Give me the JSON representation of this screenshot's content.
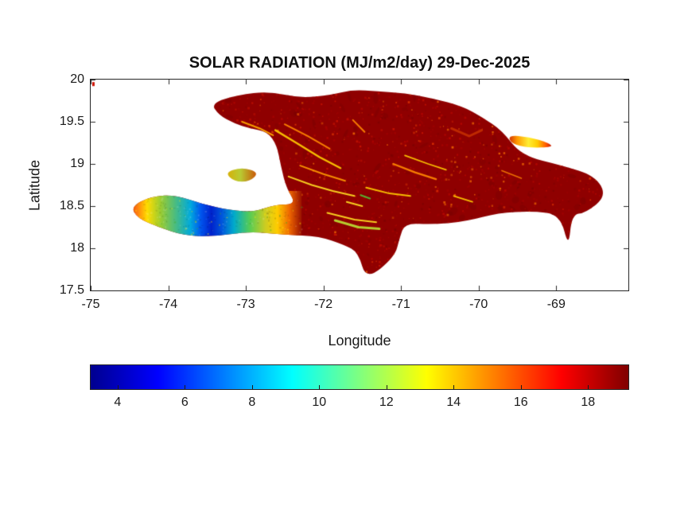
{
  "chart_data": {
    "type": "heatmap",
    "title": "SOLAR RADIATION (MJ/m2/day) 29-Dec-2025",
    "xlabel": "Longitude",
    "ylabel": "Latitude",
    "xlim": [
      -75,
      -68.07
    ],
    "ylim": [
      17.5,
      20
    ],
    "x_ticks": [
      -75,
      -74,
      -73,
      -72,
      -71,
      -70,
      -69
    ],
    "y_ticks": [
      17.5,
      18,
      18.5,
      19,
      19.5,
      20
    ],
    "value_units": "MJ/m2/day",
    "value_summary": [
      {
        "region": "most of island (Hispaniola)",
        "approx_value": "18-19"
      },
      {
        "region": "southwest Tiburon peninsula core",
        "approx_value": "4-8"
      },
      {
        "region": "southwest peninsula fringes",
        "approx_value": "9-13"
      },
      {
        "region": "interior mountain ridges",
        "approx_value": "12-15"
      },
      {
        "region": "Samana peninsula (northeast strip)",
        "approx_value": "12-16"
      },
      {
        "region": "Gonave island",
        "approx_value": "11-14"
      }
    ],
    "colorbar": {
      "orientation": "horizontal",
      "colormap": "jet",
      "range": [
        3.2,
        19.2
      ],
      "ticks": [
        4,
        6,
        8,
        10,
        12,
        14,
        16,
        18
      ],
      "stops": [
        [
          0,
          "#00008f"
        ],
        [
          0.125,
          "#0000ff"
        ],
        [
          0.375,
          "#00ffff"
        ],
        [
          0.625,
          "#ffff00"
        ],
        [
          0.875,
          "#ff0000"
        ],
        [
          1,
          "#800000"
        ]
      ]
    },
    "map": {
      "base_color": "#8f0000",
      "speckle_colors": [
        "#a00000",
        "#b40600",
        "#7d0000",
        "#c51200",
        "#d93000",
        "#e85e00"
      ],
      "outline": [
        [
          -73.45,
          19.72
        ],
        [
          -73.1,
          19.82
        ],
        [
          -72.7,
          19.86
        ],
        [
          -72.3,
          19.78
        ],
        [
          -71.9,
          19.82
        ],
        [
          -71.62,
          19.88
        ],
        [
          -71.3,
          19.86
        ],
        [
          -70.95,
          19.84
        ],
        [
          -70.6,
          19.78
        ],
        [
          -70.2,
          19.68
        ],
        [
          -69.95,
          19.55
        ],
        [
          -69.7,
          19.4
        ],
        [
          -69.45,
          19.1
        ],
        [
          -68.92,
          18.98
        ],
        [
          -68.5,
          18.86
        ],
        [
          -68.35,
          18.62
        ],
        [
          -68.62,
          18.42
        ],
        [
          -68.8,
          18.4
        ],
        [
          -68.84,
          18.0
        ],
        [
          -68.95,
          18.4
        ],
        [
          -69.3,
          18.44
        ],
        [
          -69.75,
          18.42
        ],
        [
          -70.15,
          18.32
        ],
        [
          -70.6,
          18.28
        ],
        [
          -70.95,
          18.3
        ],
        [
          -71.02,
          18.12
        ],
        [
          -71.08,
          17.9
        ],
        [
          -71.45,
          17.62
        ],
        [
          -71.55,
          17.95
        ],
        [
          -71.73,
          18.04
        ],
        [
          -72.05,
          18.14
        ],
        [
          -72.5,
          18.16
        ],
        [
          -72.95,
          18.2
        ],
        [
          -73.4,
          18.14
        ],
        [
          -73.8,
          18.15
        ],
        [
          -74.12,
          18.25
        ],
        [
          -74.4,
          18.36
        ],
        [
          -74.48,
          18.5
        ],
        [
          -74.2,
          18.62
        ],
        [
          -73.9,
          18.63
        ],
        [
          -73.55,
          18.52
        ],
        [
          -73.2,
          18.45
        ],
        [
          -72.9,
          18.43
        ],
        [
          -72.62,
          18.52
        ],
        [
          -72.35,
          18.52
        ],
        [
          -72.48,
          18.72
        ],
        [
          -72.55,
          18.98
        ],
        [
          -72.6,
          19.22
        ],
        [
          -72.72,
          19.38
        ],
        [
          -72.95,
          19.42
        ],
        [
          -73.15,
          19.48
        ],
        [
          -73.35,
          19.58
        ]
      ],
      "gonave": {
        "points": [
          [
            -73.27,
            18.9
          ],
          [
            -73.05,
            18.96
          ],
          [
            -72.83,
            18.9
          ],
          [
            -72.95,
            18.79
          ],
          [
            -73.15,
            18.79
          ]
        ],
        "stops": [
          [
            0,
            "#ddaa00"
          ],
          [
            0.45,
            "#b9cc33"
          ],
          [
            1,
            "#cc4400"
          ]
        ]
      },
      "samana": {
        "points": [
          [
            -69.62,
            19.34
          ],
          [
            -69.35,
            19.32
          ],
          [
            -69.1,
            19.25
          ],
          [
            -69.04,
            19.2
          ],
          [
            -69.35,
            19.19
          ],
          [
            -69.58,
            19.24
          ]
        ],
        "stops": [
          [
            0,
            "#cc2200"
          ],
          [
            0.2,
            "#ff9900"
          ],
          [
            0.45,
            "#ffee33"
          ],
          [
            0.65,
            "#ffcc00"
          ],
          [
            0.85,
            "#ff5500"
          ],
          [
            1,
            "#aa0000"
          ]
        ]
      },
      "low_region": {
        "lon0": -74.52,
        "lat0": 18.08,
        "lon1": -72.28,
        "lat1": 18.68,
        "stops": [
          [
            0,
            "#cc3300"
          ],
          [
            0.05,
            "#ff7711"
          ],
          [
            0.11,
            "#ffdd00"
          ],
          [
            0.19,
            "#99cc33"
          ],
          [
            0.28,
            "#44bb88"
          ],
          [
            0.36,
            "#00aadd"
          ],
          [
            0.42,
            "#0055ee"
          ],
          [
            0.48,
            "#0022cc"
          ],
          [
            0.54,
            "#0055dd"
          ],
          [
            0.61,
            "#00aacc"
          ],
          [
            0.7,
            "#55cc55"
          ],
          [
            0.79,
            "#cccc22"
          ],
          [
            0.86,
            "#ffcc00"
          ],
          [
            0.93,
            "#ee6600"
          ],
          [
            1,
            "#991100"
          ]
        ]
      },
      "ridges": [
        {
          "color": "#ffcc00",
          "width": 2.4,
          "points": [
            [
              -72.62,
              19.4
            ],
            [
              -72.35,
              19.25
            ],
            [
              -72.05,
              19.08
            ],
            [
              -71.78,
              18.95
            ]
          ]
        },
        {
          "color": "#ff8800",
          "width": 2,
          "points": [
            [
              -72.5,
              19.47
            ],
            [
              -72.2,
              19.33
            ],
            [
              -71.92,
              19.18
            ]
          ]
        },
        {
          "color": "#ffaa00",
          "width": 2,
          "points": [
            [
              -73.05,
              19.5
            ],
            [
              -72.82,
              19.42
            ],
            [
              -72.65,
              19.34
            ]
          ]
        },
        {
          "color": "#ffdd22",
          "width": 2,
          "points": [
            [
              -72.45,
              18.85
            ],
            [
              -72.15,
              18.75
            ],
            [
              -71.88,
              18.68
            ],
            [
              -71.6,
              18.62
            ]
          ]
        },
        {
          "color": "#ff9900",
          "width": 2,
          "points": [
            [
              -72.3,
              18.98
            ],
            [
              -72.0,
              18.88
            ],
            [
              -71.72,
              18.8
            ]
          ]
        },
        {
          "color": "#bbdd33",
          "width": 3,
          "points": [
            [
              -71.85,
              18.33
            ],
            [
              -71.55,
              18.25
            ],
            [
              -71.28,
              18.23
            ]
          ]
        },
        {
          "color": "#ffdd22",
          "width": 2,
          "points": [
            [
              -71.95,
              18.42
            ],
            [
              -71.6,
              18.34
            ],
            [
              -71.32,
              18.31
            ]
          ]
        },
        {
          "color": "#ffcc00",
          "width": 2,
          "points": [
            [
              -71.45,
              18.72
            ],
            [
              -71.15,
              18.65
            ],
            [
              -70.88,
              18.62
            ]
          ]
        },
        {
          "color": "#ff8800",
          "width": 2.4,
          "points": [
            [
              -71.1,
              19.0
            ],
            [
              -70.82,
              18.9
            ],
            [
              -70.55,
              18.82
            ]
          ]
        },
        {
          "color": "#ffcc00",
          "width": 1.8,
          "points": [
            [
              -70.95,
              19.1
            ],
            [
              -70.65,
              19.0
            ],
            [
              -70.42,
              18.93
            ]
          ]
        },
        {
          "color": "#ff8800",
          "width": 2,
          "points": [
            [
              -71.62,
              19.52
            ],
            [
              -71.47,
              19.38
            ]
          ]
        },
        {
          "color": "#dd4400",
          "width": 3,
          "alpha": 0.6,
          "points": [
            [
              -70.35,
              19.42
            ],
            [
              -70.12,
              19.33
            ],
            [
              -69.96,
              19.4
            ]
          ]
        },
        {
          "color": "#ffcc00",
          "width": 1.8,
          "points": [
            [
              -70.32,
              18.62
            ],
            [
              -70.08,
              18.55
            ]
          ]
        },
        {
          "color": "#ff8800",
          "width": 1.8,
          "alpha": 0.8,
          "points": [
            [
              -69.7,
              18.92
            ],
            [
              -69.45,
              18.83
            ]
          ]
        },
        {
          "color": "#55bb33",
          "width": 2.2,
          "points": [
            [
              -71.52,
              18.63
            ],
            [
              -71.4,
              18.59
            ]
          ]
        },
        {
          "color": "#ffdd22",
          "width": 2,
          "points": [
            [
              -71.7,
              18.55
            ],
            [
              -71.5,
              18.5
            ]
          ]
        }
      ],
      "stray_mark": {
        "lon": -74.98,
        "lat": 19.97,
        "w": 3,
        "h": 5,
        "color": "#cc1100"
      }
    }
  }
}
